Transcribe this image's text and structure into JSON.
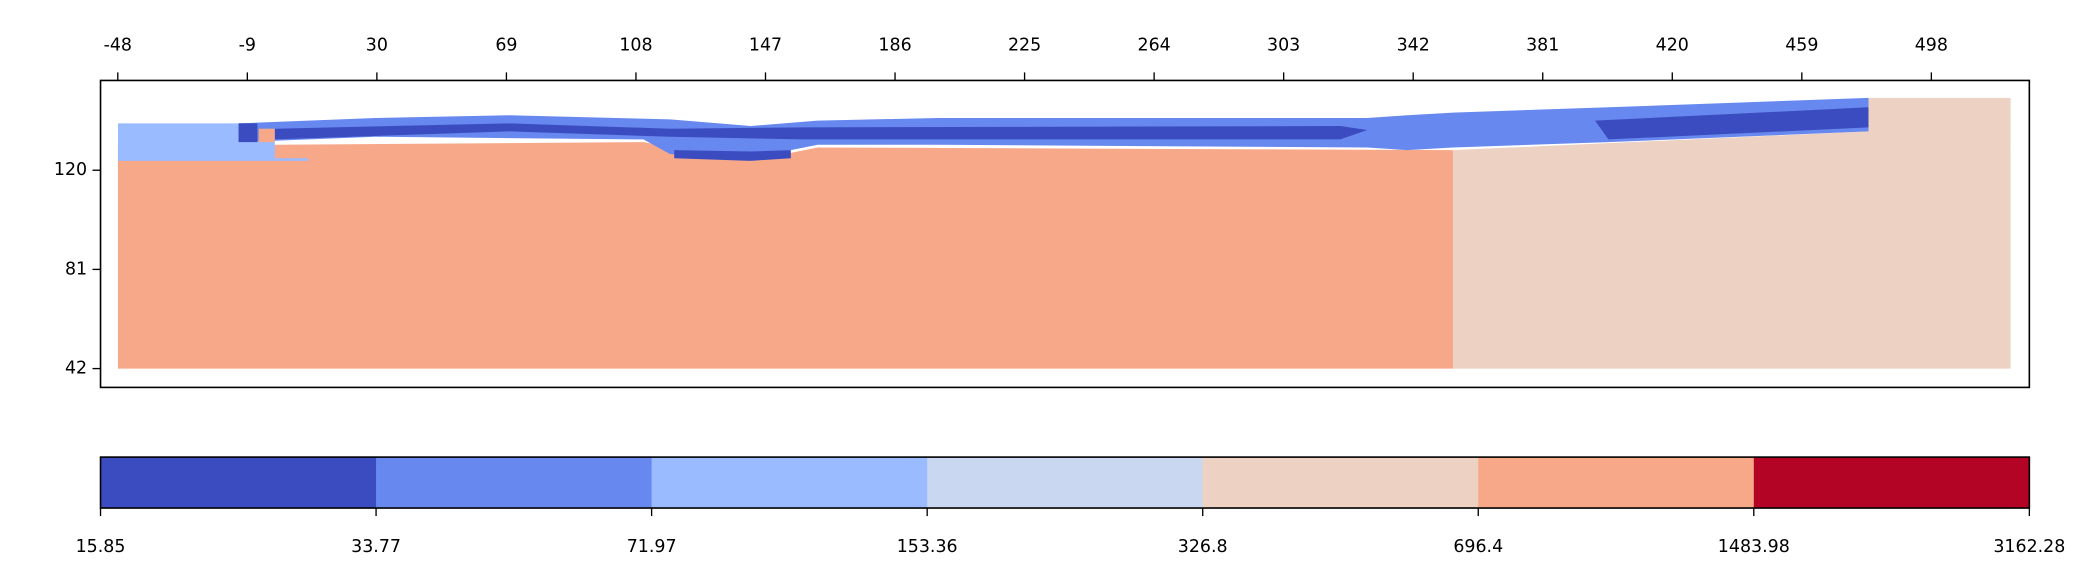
{
  "chart_data": {
    "type": "mesh",
    "xlim": [
      -53.2,
      527.5
    ],
    "xticks": [
      -48,
      -9,
      30,
      69,
      108,
      147,
      186,
      225,
      264,
      303,
      342,
      381,
      420,
      459,
      498
    ],
    "ylim": [
      34.6,
      155.3
    ],
    "yticks": [
      42,
      81,
      120
    ],
    "colorbar": {
      "boundaries": [
        15.85,
        33.77,
        71.97,
        153.36,
        326.8,
        696.4,
        1483.98,
        3162.28
      ],
      "colors": [
        "#3b4cc0",
        "#6788ee",
        "#9abbff",
        "#c9d7f0",
        "#edd1c2",
        "#f7a889",
        "#b40426"
      ]
    }
  }
}
